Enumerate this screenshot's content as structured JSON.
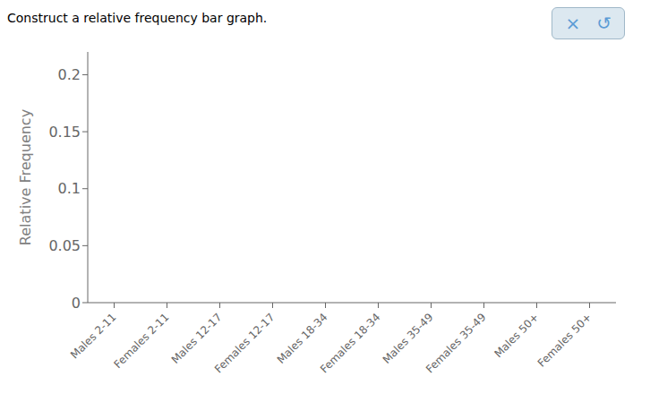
{
  "chart_data": {
    "type": "bar",
    "title": "Construct a relative frequency bar graph.",
    "ylabel": "Relative Frequency",
    "categories": [
      "Males 2-11",
      "Females 2-11",
      "Males 12-17",
      "Females 12-17",
      "Males 18-34",
      "Females 18-34",
      "Males 35-49",
      "Females 35-49",
      "Males 50+",
      "Females 50+"
    ],
    "values": [
      0,
      0,
      0,
      0,
      0,
      0,
      0,
      0,
      0,
      0
    ],
    "color": "#4472c4",
    "ylim": [
      0,
      0.22
    ],
    "yticks": [
      0,
      0.05,
      0.1,
      0.15,
      0.2
    ],
    "grid": false,
    "annotations": [
      "×",
      "↺"
    ]
  }
}
